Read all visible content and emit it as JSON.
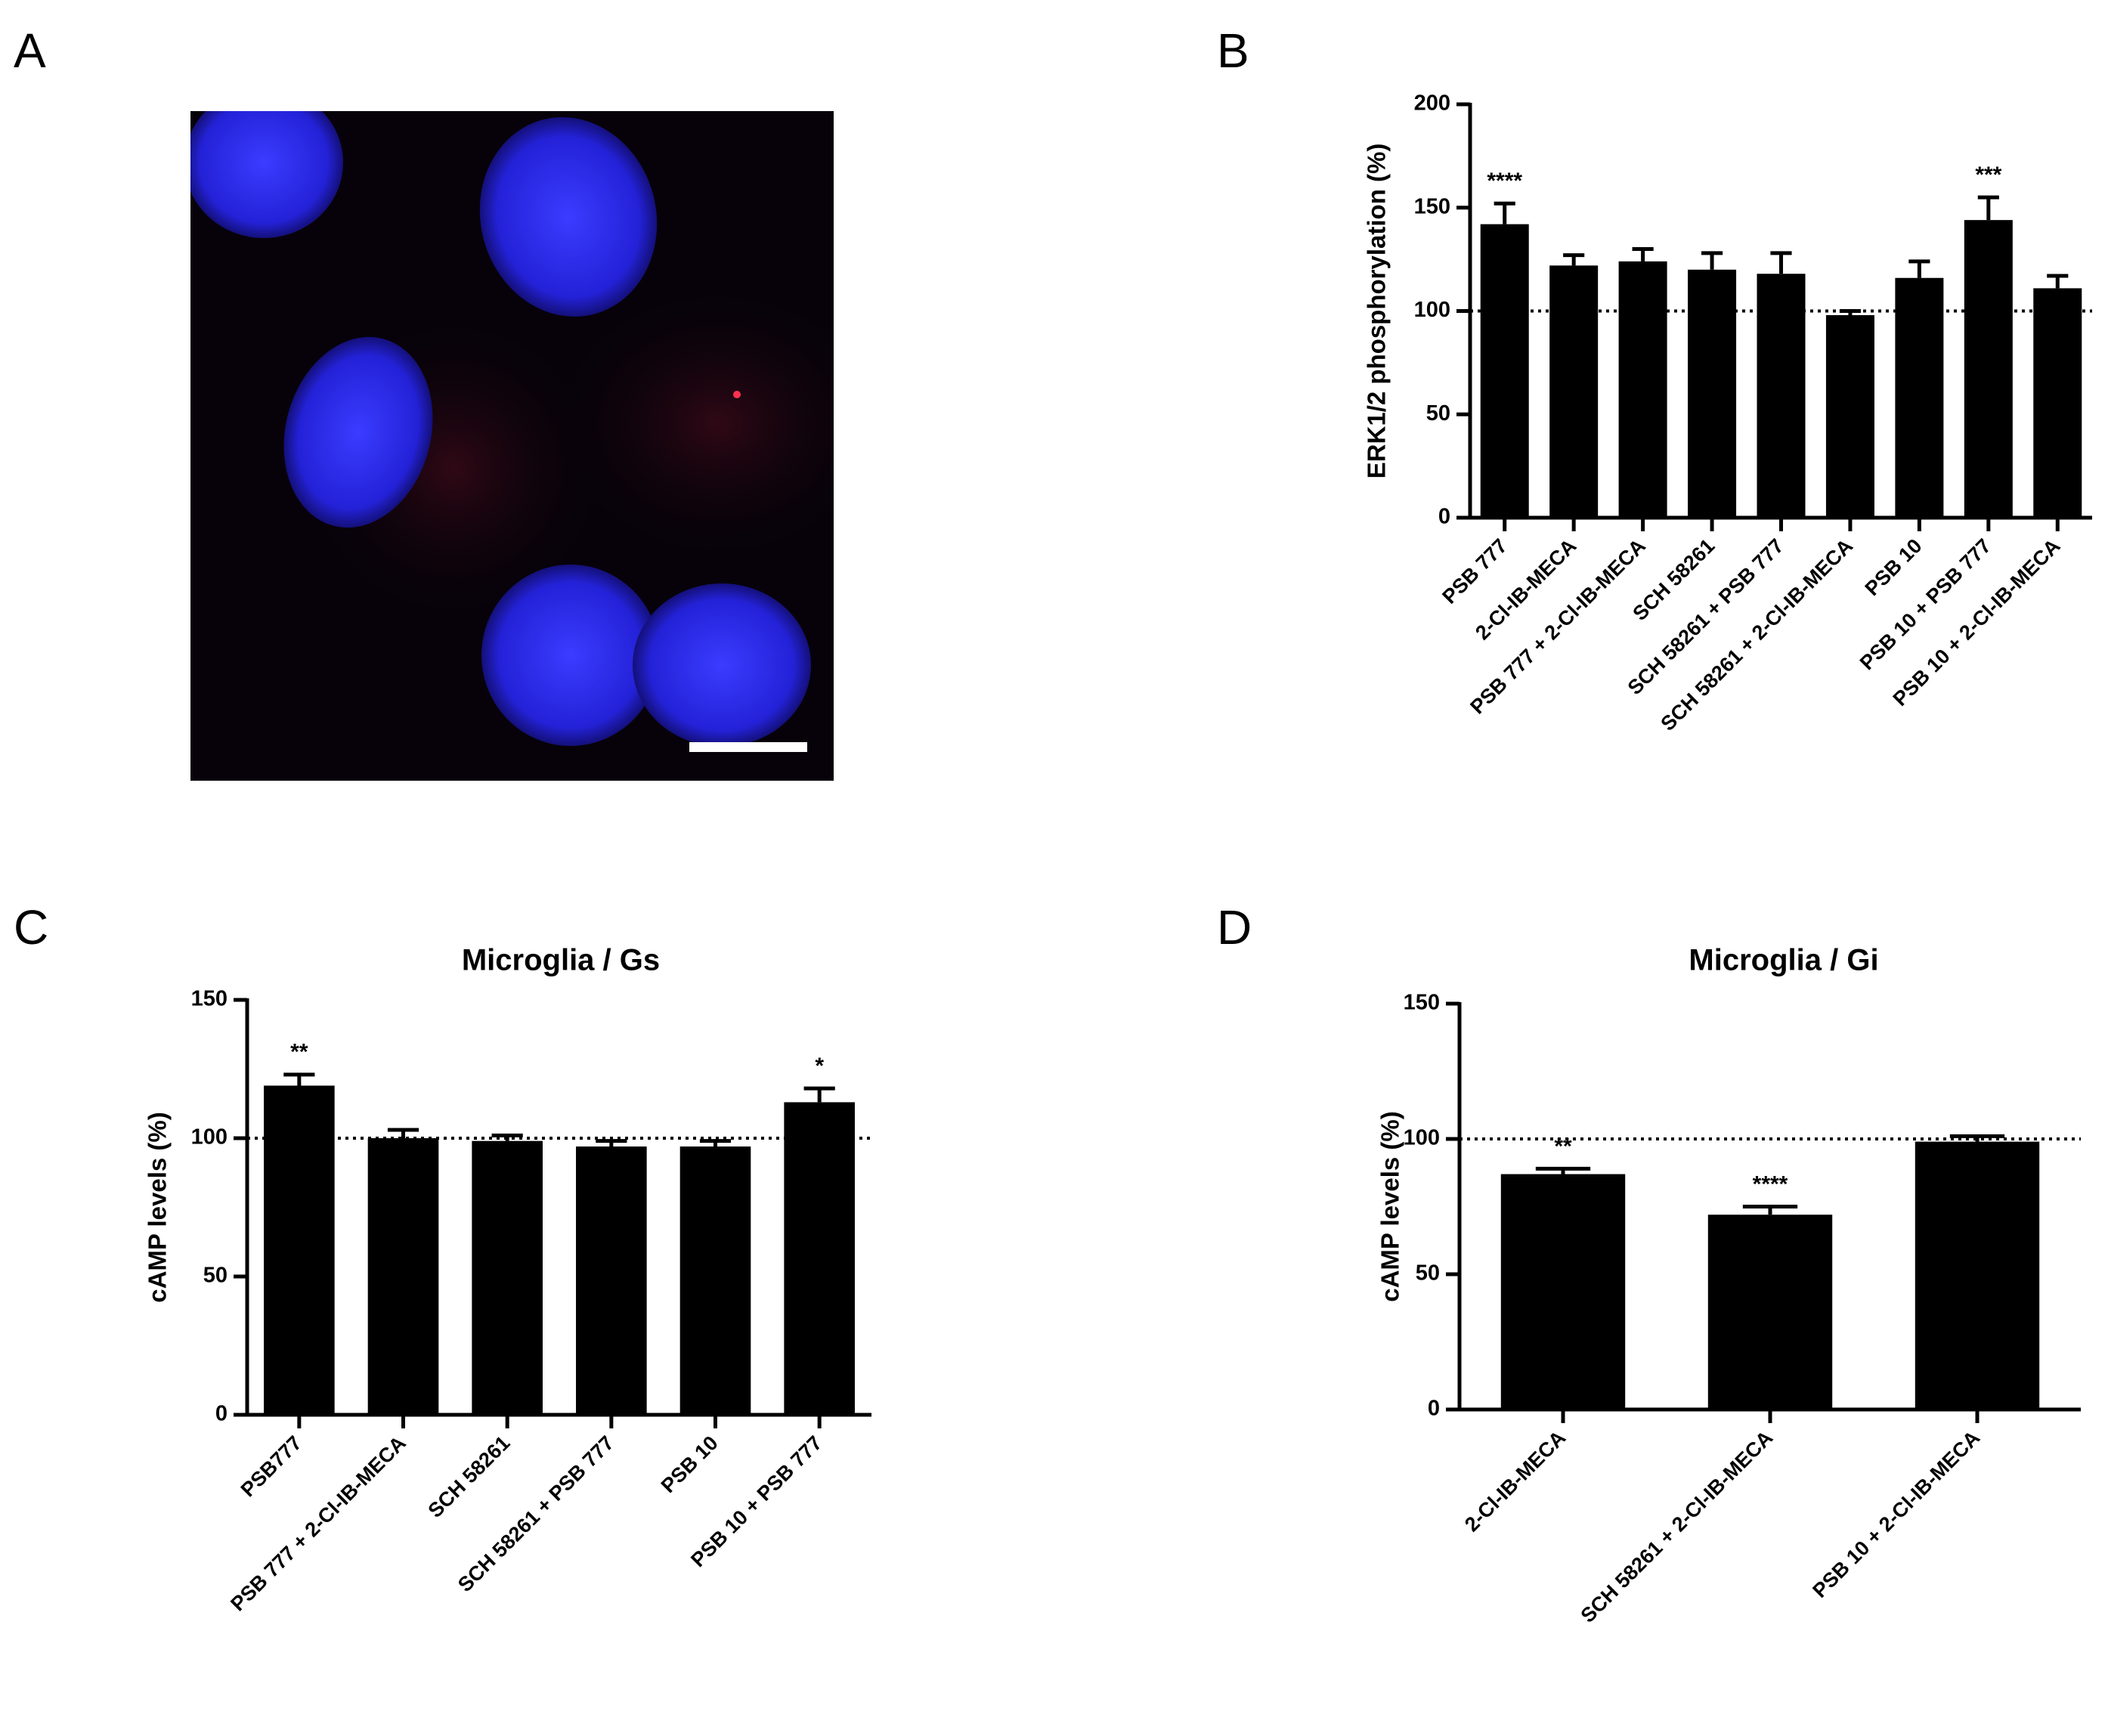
{
  "image_panel": {
    "label": "A"
  },
  "chart_data": [
    {
      "type": "bar",
      "label": "B",
      "ylabel": "ERK1/2 phosphorylation (%)",
      "categories": [
        "PSB 777",
        "2-Cl-IB-MECA",
        "PSB 777 + 2-Cl-IB-MECA",
        "SCH 58261",
        "SCH 58261 + PSB 777",
        "SCH 58261 + 2-Cl-IB-MECA",
        "PSB 10",
        "PSB 10 + PSB 777",
        "PSB 10 + 2-Cl-IB-MECA"
      ],
      "values": [
        142,
        122,
        124,
        120,
        118,
        98,
        116,
        144,
        111
      ],
      "errors": [
        10,
        5,
        6,
        8,
        10,
        2,
        8,
        11,
        6
      ],
      "significance": [
        "****",
        null,
        null,
        null,
        null,
        null,
        null,
        "***",
        null
      ],
      "color": "#000000",
      "reference_line": 100,
      "ylim": [
        0,
        200
      ],
      "yticks": [
        0,
        50,
        100,
        150,
        200
      ]
    },
    {
      "type": "bar",
      "label": "C",
      "title": "Microglia / Gs",
      "ylabel": "cAMP levels (%)",
      "categories": [
        "PSB777",
        "PSB 777 + 2-Cl-IB-MECA",
        "SCH 58261",
        "SCH 58261 + PSB 777",
        "PSB 10",
        "PSB 10 + PSB 777"
      ],
      "values": [
        119,
        100,
        99,
        97,
        97,
        113
      ],
      "errors": [
        4,
        3,
        2,
        2,
        2,
        5
      ],
      "significance": [
        "**",
        null,
        null,
        null,
        null,
        "*"
      ],
      "color": "#000000",
      "reference_line": 100,
      "ylim": [
        0,
        150
      ],
      "yticks": [
        0,
        50,
        100,
        150
      ]
    },
    {
      "type": "bar",
      "label": "D",
      "title": "Microglia / Gi",
      "ylabel": "cAMP levels (%)",
      "categories": [
        "2-Cl-IB-MECA",
        "SCH 58261 + 2-Cl-IB-MECA",
        "PSB 10 + 2-Cl-IB-MECA"
      ],
      "values": [
        87,
        72,
        99
      ],
      "errors": [
        2,
        3,
        2
      ],
      "significance": [
        "**",
        "****",
        null
      ],
      "color": "#000000",
      "reference_line": 100,
      "ylim": [
        0,
        150
      ],
      "yticks": [
        0,
        50,
        100,
        150
      ]
    }
  ]
}
